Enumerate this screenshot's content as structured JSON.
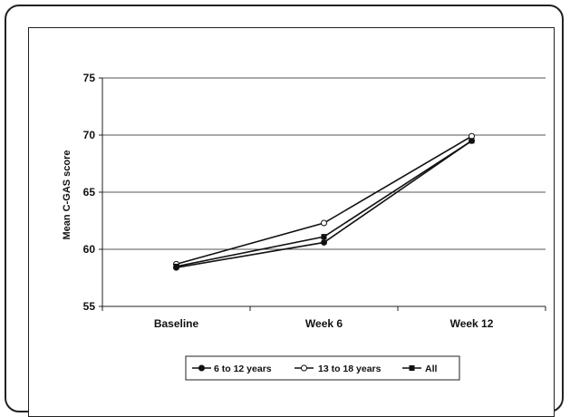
{
  "chart_data": {
    "type": "line",
    "title": "",
    "xlabel": "",
    "ylabel": "Mean C-GAS score",
    "ylim": [
      55,
      75
    ],
    "yticks": [
      55,
      60,
      65,
      70,
      75
    ],
    "categories": [
      "Baseline",
      "Week 6",
      "Week 12"
    ],
    "grid": "horizontal",
    "legend_position": "bottom",
    "series": [
      {
        "name": "6 to 12 years",
        "values": [
          58.4,
          60.6,
          69.5
        ],
        "marker": "filled-circle",
        "color": "#111111"
      },
      {
        "name": "13 to 18 years",
        "values": [
          58.7,
          62.3,
          69.9
        ],
        "marker": "open-circle",
        "color": "#111111"
      },
      {
        "name": "All",
        "values": [
          58.5,
          61.1,
          69.5
        ],
        "marker": "filled-square",
        "color": "#111111"
      }
    ]
  }
}
